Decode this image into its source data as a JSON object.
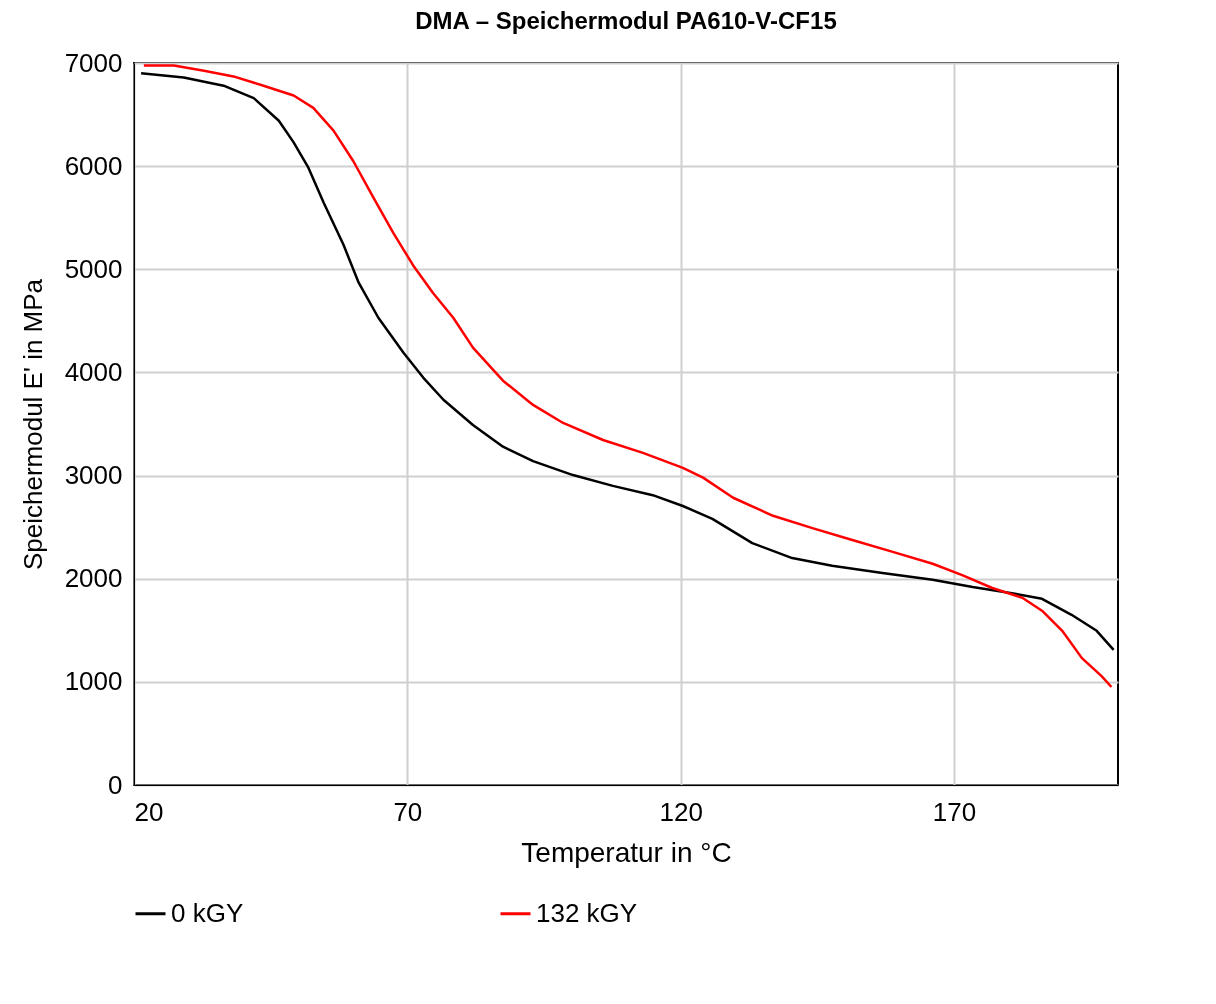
{
  "chart_data": {
    "type": "line",
    "title": "DMA – Speichermodul PA610-V-CF15",
    "xlabel": "Temperatur in °C",
    "ylabel": "Speichermodul E' in MPa",
    "xlim": [
      20,
      200
    ],
    "xticks": [
      20,
      70,
      120,
      170
    ],
    "ylim": [
      0,
      7000
    ],
    "yticks": [
      0,
      1000,
      2000,
      3000,
      4000,
      5000,
      6000,
      7000
    ],
    "grid": true,
    "legend": "bottom",
    "marker": "none",
    "line_style": "solid",
    "series": [
      {
        "name": "0 kGY",
        "color": "#000000",
        "x": [
          21.3,
          29.1,
          36.4,
          41.9,
          46.5,
          49.2,
          51.9,
          54.7,
          58.3,
          61.1,
          64.7,
          69.3,
          72.9,
          76.6,
          82.0,
          87.5,
          93.0,
          100.3,
          107.6,
          114.9,
          120.4,
          125.8,
          133.1,
          140.4,
          147.7,
          156.9,
          166.1,
          173.4,
          180.6,
          186.1,
          191.5,
          196.1,
          199.2
        ],
        "values": [
          6900,
          6860,
          6780,
          6660,
          6440,
          6230,
          5985,
          5645,
          5240,
          4870,
          4530,
          4190,
          3950,
          3735,
          3490,
          3280,
          3140,
          3005,
          2900,
          2810,
          2705,
          2580,
          2345,
          2200,
          2125,
          2055,
          1990,
          1920,
          1860,
          1805,
          1650,
          1495,
          1310
        ]
      },
      {
        "name": "132 kGY",
        "color": "#ff0000",
        "x": [
          21.8,
          27.3,
          32.8,
          38.2,
          43.7,
          49.2,
          52.8,
          56.5,
          60.1,
          63.8,
          67.4,
          71.1,
          74.7,
          78.4,
          82.0,
          87.5,
          93.0,
          98.5,
          105.8,
          113.1,
          120.4,
          124.1,
          129.6,
          136.9,
          144.1,
          151.4,
          158.8,
          166.1,
          171.5,
          177.0,
          182.5,
          186.1,
          189.8,
          193.4,
          197.0,
          198.8
        ],
        "values": [
          6975,
          6975,
          6925,
          6870,
          6780,
          6685,
          6565,
          6345,
          6050,
          5695,
          5355,
          5035,
          4770,
          4530,
          4240,
          3920,
          3685,
          3510,
          3345,
          3220,
          3075,
          2980,
          2785,
          2610,
          2490,
          2375,
          2260,
          2145,
          2035,
          1910,
          1815,
          1690,
          1495,
          1230,
          1055,
          950
        ]
      }
    ]
  }
}
